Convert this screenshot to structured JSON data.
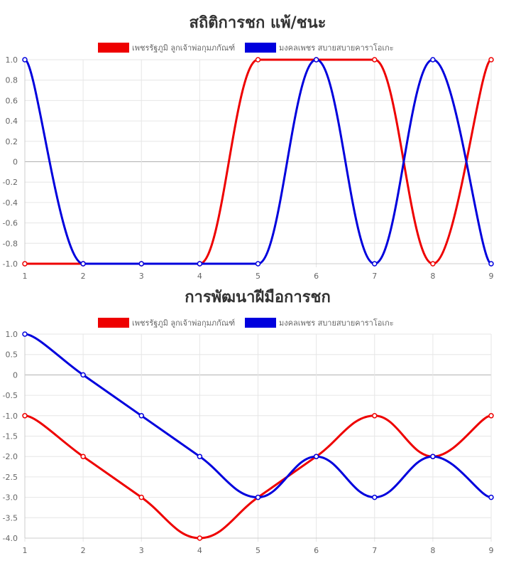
{
  "chart_data": [
    {
      "type": "line",
      "title": "สถิติการชก แพ้/ชนะ",
      "x": [
        1,
        2,
        3,
        4,
        5,
        6,
        7,
        8,
        9
      ],
      "series": [
        {
          "name": "เพชรรัฐภูมิ ลูกเจ้าพ่อกุมภกัณฑ์",
          "color": "#ee0000",
          "values": [
            -1,
            -1,
            -1,
            -1,
            1,
            1,
            1,
            -1,
            1
          ]
        },
        {
          "name": "มงคลเพชร สบายสบายคาราโอเกะ",
          "color": "#0000dd",
          "values": [
            1,
            -1,
            -1,
            -1,
            -1,
            1,
            -1,
            1,
            -1
          ]
        }
      ],
      "ylim": [
        -1,
        1
      ],
      "yticks": [
        "1.0",
        "0.8",
        "0.6",
        "0.4",
        "0.2",
        "0",
        "-0.2",
        "-0.4",
        "-0.6",
        "-0.8",
        "-1.0"
      ],
      "xticks": [
        "1",
        "2",
        "3",
        "4",
        "5",
        "6",
        "7",
        "8",
        "9"
      ],
      "grid": true,
      "legend": "top"
    },
    {
      "type": "line",
      "title": "การพัฒนาฝีมือการชก",
      "x": [
        1,
        2,
        3,
        4,
        5,
        6,
        7,
        8,
        9
      ],
      "series": [
        {
          "name": "เพชรรัฐภูมิ ลูกเจ้าพ่อกุมภกัณฑ์",
          "color": "#ee0000",
          "values": [
            -1,
            -2,
            -3,
            -4,
            -3,
            -2,
            -1,
            -2,
            -1
          ]
        },
        {
          "name": "มงคลเพชร สบายสบายคาราโอเกะ",
          "color": "#0000dd",
          "values": [
            1,
            0,
            -1,
            -2,
            -3,
            -2,
            -3,
            -2,
            -3
          ]
        }
      ],
      "ylim": [
        -4,
        1
      ],
      "yticks": [
        "1.0",
        "0.5",
        "0",
        "-0.5",
        "-1.0",
        "-1.5",
        "-2.0",
        "-2.5",
        "-3.0",
        "-3.5",
        "-4.0"
      ],
      "xticks": [
        "1",
        "2",
        "3",
        "4",
        "5",
        "6",
        "7",
        "8",
        "9"
      ],
      "grid": true,
      "legend": "top"
    }
  ]
}
